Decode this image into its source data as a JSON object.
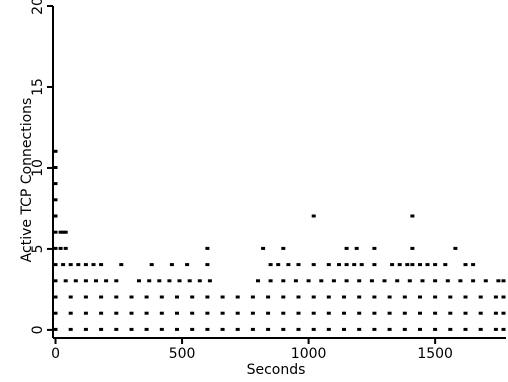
{
  "chart_data": {
    "type": "scatter",
    "xlabel": "Seconds",
    "ylabel": "Active TCP Connections",
    "xlim": [
      -10,
      1780
    ],
    "ylim": [
      -0.5,
      20
    ],
    "xticks": [
      0,
      500,
      1000,
      1500
    ],
    "xtick_labels": [
      "0",
      "500",
      "1000",
      "1500"
    ],
    "yticks": [
      0,
      5,
      10,
      15,
      20
    ],
    "ytick_labels": [
      "0",
      "5",
      "10",
      "15",
      "20"
    ],
    "grid": false,
    "legend": "none",
    "marker_color": "#000000",
    "series": [
      {
        "points": [
          [
            0,
            11
          ],
          [
            0,
            10
          ],
          [
            0,
            9
          ],
          [
            0,
            8
          ],
          [
            0,
            7
          ],
          [
            0,
            6
          ],
          [
            0,
            5
          ],
          [
            0,
            4
          ],
          [
            20,
            6
          ],
          [
            30,
            6
          ],
          [
            40,
            6
          ],
          [
            20,
            5
          ],
          [
            40,
            5
          ],
          [
            30,
            4
          ],
          [
            60,
            4
          ],
          [
            90,
            4
          ],
          [
            120,
            4
          ],
          [
            150,
            4
          ],
          [
            180,
            4
          ],
          [
            260,
            4
          ],
          [
            380,
            4
          ],
          [
            460,
            4
          ],
          [
            520,
            4
          ],
          [
            600,
            5
          ],
          [
            600,
            4
          ],
          [
            820,
            5
          ],
          [
            900,
            5
          ],
          [
            850,
            4
          ],
          [
            880,
            4
          ],
          [
            920,
            4
          ],
          [
            960,
            4
          ],
          [
            1020,
            7
          ],
          [
            1020,
            4
          ],
          [
            1080,
            4
          ],
          [
            1150,
            5
          ],
          [
            1190,
            5
          ],
          [
            1120,
            4
          ],
          [
            1150,
            4
          ],
          [
            1180,
            4
          ],
          [
            1210,
            4
          ],
          [
            1260,
            5
          ],
          [
            1260,
            4
          ],
          [
            1330,
            4
          ],
          [
            1360,
            4
          ],
          [
            1390,
            4
          ],
          [
            1410,
            7
          ],
          [
            1410,
            5
          ],
          [
            1410,
            4
          ],
          [
            1440,
            4
          ],
          [
            1470,
            4
          ],
          [
            1500,
            4
          ],
          [
            1540,
            4
          ],
          [
            1580,
            5
          ],
          [
            1620,
            4
          ],
          [
            1650,
            4
          ],
          [
            0,
            3
          ],
          [
            40,
            3
          ],
          [
            80,
            3
          ],
          [
            120,
            3
          ],
          [
            160,
            3
          ],
          [
            200,
            3
          ],
          [
            240,
            3
          ],
          [
            330,
            3
          ],
          [
            370,
            3
          ],
          [
            410,
            3
          ],
          [
            450,
            3
          ],
          [
            490,
            3
          ],
          [
            530,
            3
          ],
          [
            570,
            3
          ],
          [
            610,
            3
          ],
          [
            800,
            3
          ],
          [
            850,
            3
          ],
          [
            900,
            3
          ],
          [
            950,
            3
          ],
          [
            1000,
            3
          ],
          [
            1050,
            3
          ],
          [
            1100,
            3
          ],
          [
            1150,
            3
          ],
          [
            1200,
            3
          ],
          [
            1250,
            3
          ],
          [
            1300,
            3
          ],
          [
            1350,
            3
          ],
          [
            1400,
            3
          ],
          [
            1450,
            3
          ],
          [
            1500,
            3
          ],
          [
            1550,
            3
          ],
          [
            1600,
            3
          ],
          [
            1650,
            3
          ],
          [
            1700,
            3
          ],
          [
            1750,
            3
          ],
          [
            1770,
            3
          ],
          [
            0,
            2
          ],
          [
            60,
            2
          ],
          [
            120,
            2
          ],
          [
            180,
            2
          ],
          [
            240,
            2
          ],
          [
            300,
            2
          ],
          [
            360,
            2
          ],
          [
            420,
            2
          ],
          [
            480,
            2
          ],
          [
            540,
            2
          ],
          [
            600,
            2
          ],
          [
            660,
            2
          ],
          [
            720,
            2
          ],
          [
            780,
            2
          ],
          [
            840,
            2
          ],
          [
            900,
            2
          ],
          [
            960,
            2
          ],
          [
            1020,
            2
          ],
          [
            1080,
            2
          ],
          [
            1140,
            2
          ],
          [
            1200,
            2
          ],
          [
            1260,
            2
          ],
          [
            1320,
            2
          ],
          [
            1380,
            2
          ],
          [
            1440,
            2
          ],
          [
            1500,
            2
          ],
          [
            1560,
            2
          ],
          [
            1620,
            2
          ],
          [
            1680,
            2
          ],
          [
            1740,
            2
          ],
          [
            1770,
            2
          ],
          [
            0,
            1
          ],
          [
            60,
            1
          ],
          [
            120,
            1
          ],
          [
            180,
            1
          ],
          [
            240,
            1
          ],
          [
            300,
            1
          ],
          [
            360,
            1
          ],
          [
            420,
            1
          ],
          [
            480,
            1
          ],
          [
            540,
            1
          ],
          [
            600,
            1
          ],
          [
            660,
            1
          ],
          [
            720,
            1
          ],
          [
            780,
            1
          ],
          [
            840,
            1
          ],
          [
            900,
            1
          ],
          [
            960,
            1
          ],
          [
            1020,
            1
          ],
          [
            1080,
            1
          ],
          [
            1140,
            1
          ],
          [
            1200,
            1
          ],
          [
            1260,
            1
          ],
          [
            1320,
            1
          ],
          [
            1380,
            1
          ],
          [
            1440,
            1
          ],
          [
            1500,
            1
          ],
          [
            1560,
            1
          ],
          [
            1620,
            1
          ],
          [
            1680,
            1
          ],
          [
            1740,
            1
          ],
          [
            1770,
            1
          ],
          [
            0,
            0
          ],
          [
            60,
            0
          ],
          [
            120,
            0
          ],
          [
            180,
            0
          ],
          [
            240,
            0
          ],
          [
            300,
            0
          ],
          [
            360,
            0
          ],
          [
            420,
            0
          ],
          [
            480,
            0
          ],
          [
            540,
            0
          ],
          [
            600,
            0
          ],
          [
            660,
            0
          ],
          [
            720,
            0
          ],
          [
            780,
            0
          ],
          [
            840,
            0
          ],
          [
            900,
            0
          ],
          [
            960,
            0
          ],
          [
            1020,
            0
          ],
          [
            1080,
            0
          ],
          [
            1140,
            0
          ],
          [
            1200,
            0
          ],
          [
            1260,
            0
          ],
          [
            1320,
            0
          ],
          [
            1380,
            0
          ],
          [
            1440,
            0
          ],
          [
            1500,
            0
          ],
          [
            1560,
            0
          ],
          [
            1620,
            0
          ],
          [
            1680,
            0
          ],
          [
            1740,
            0
          ],
          [
            1770,
            0
          ]
        ]
      }
    ]
  }
}
